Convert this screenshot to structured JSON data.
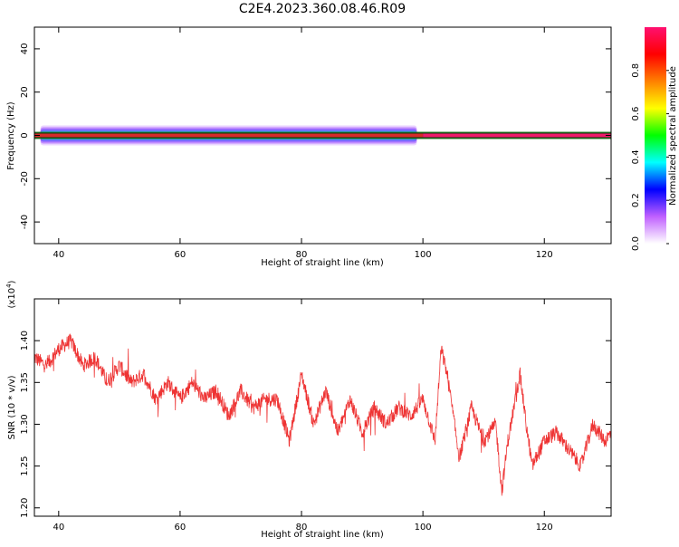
{
  "title": "C2E4.2023.360.08.46.R09",
  "chart_data": [
    {
      "type": "heatmap",
      "xlabel": "Height of straight line (km)",
      "ylabel": "Frequency (Hz)",
      "xlim": [
        36,
        131
      ],
      "ylim": [
        -50,
        50
      ],
      "xticks": [
        40,
        60,
        80,
        100,
        120
      ],
      "yticks": [
        -40,
        -20,
        0,
        20,
        40
      ],
      "ridge": {
        "frequency": 0,
        "x_range": [
          36,
          131
        ],
        "segments": [
          {
            "x": [
              36,
              100
            ],
            "color": "#d42a2a"
          },
          {
            "x": [
              100,
              131
            ],
            "color": "#ee1a6a"
          }
        ],
        "halo_x_range": [
          37,
          99
        ],
        "halo_colors": [
          "#00ff00",
          "#00d8ff",
          "#4a40ff",
          "#a050ff",
          "#d8b0ff"
        ]
      },
      "colorbar": {
        "label": "Normalized spectral amplitude",
        "range": [
          0,
          1
        ],
        "ticks": [
          0.0,
          0.2,
          0.4,
          0.6,
          0.8
        ],
        "tick_labels": [
          "0.0",
          "0.2",
          "0.4",
          "0.6",
          "0.8"
        ],
        "colors": [
          "#ffffff",
          "#c060ff",
          "#0000ff",
          "#00ffff",
          "#00ff00",
          "#ffff00",
          "#ff8000",
          "#ff0000",
          "#ff1070"
        ]
      }
    },
    {
      "type": "line",
      "xlabel": "Height of straight line (km)",
      "ylabel": "SNR (10 * v/v)",
      "yscale_label": "(x10",
      "yscale_exp": "4",
      "yscale_close": ")",
      "xlim": [
        36,
        131
      ],
      "ylim": [
        1.19,
        1.45
      ],
      "xticks": [
        40,
        60,
        80,
        100,
        120
      ],
      "yticks": [
        1.2,
        1.25,
        1.3,
        1.35,
        1.4
      ],
      "ytick_labels": [
        "1.20",
        "1.25",
        "1.30",
        "1.35",
        "1.40"
      ],
      "series": [
        {
          "color": "#ee3333",
          "x": [
            36,
            38,
            40,
            42,
            44,
            46,
            48,
            50,
            52,
            54,
            56,
            58,
            60,
            62,
            64,
            66,
            68,
            70,
            72,
            74,
            76,
            78,
            80,
            82,
            84,
            86,
            88,
            90,
            92,
            94,
            96,
            98,
            100,
            102,
            103,
            104,
            106,
            108,
            110,
            112,
            113,
            114,
            116,
            117,
            118,
            120,
            122,
            124,
            126,
            128,
            130,
            131
          ],
          "y": [
            1.38,
            1.37,
            1.39,
            1.4,
            1.37,
            1.38,
            1.35,
            1.37,
            1.35,
            1.36,
            1.33,
            1.35,
            1.33,
            1.35,
            1.33,
            1.34,
            1.31,
            1.34,
            1.32,
            1.33,
            1.33,
            1.28,
            1.36,
            1.3,
            1.34,
            1.29,
            1.33,
            1.29,
            1.32,
            1.3,
            1.32,
            1.31,
            1.33,
            1.28,
            1.39,
            1.36,
            1.26,
            1.32,
            1.28,
            1.3,
            1.22,
            1.28,
            1.36,
            1.3,
            1.25,
            1.28,
            1.29,
            1.27,
            1.25,
            1.3,
            1.28,
            1.29
          ]
        }
      ]
    }
  ]
}
